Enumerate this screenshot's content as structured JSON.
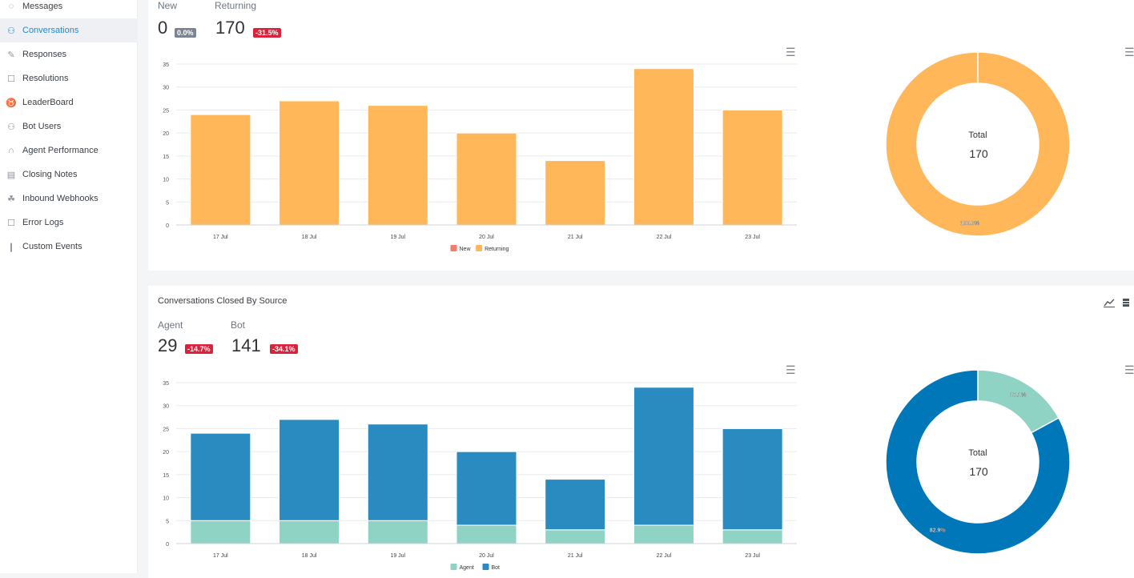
{
  "sidebar": {
    "items": [
      {
        "label": "Messages",
        "icon": "message-icon",
        "glyph": "◌",
        "active": false
      },
      {
        "label": "Conversations",
        "icon": "conversations-icon",
        "glyph": "⚇",
        "active": true
      },
      {
        "label": "Responses",
        "icon": "edit-icon",
        "glyph": "✎",
        "active": false
      },
      {
        "label": "Resolutions",
        "icon": "document-icon",
        "glyph": "☐",
        "active": false
      },
      {
        "label": "LeaderBoard",
        "icon": "trophy-icon",
        "glyph": "♉",
        "active": false
      },
      {
        "label": "Bot Users",
        "icon": "user-icon",
        "glyph": "⚇",
        "active": false
      },
      {
        "label": "Agent Performance",
        "icon": "headset-icon",
        "glyph": "∩",
        "active": false
      },
      {
        "label": "Closing Notes",
        "icon": "clipboard-icon",
        "glyph": "▤",
        "active": false
      },
      {
        "label": "Inbound Webhooks",
        "icon": "webhook-icon",
        "glyph": "☘",
        "active": false
      },
      {
        "label": "Error Logs",
        "icon": "error-log-icon",
        "glyph": "☐",
        "active": false
      },
      {
        "label": "Custom Events",
        "icon": "bar-chart-icon",
        "glyph": "❙",
        "active": false
      }
    ]
  },
  "card1": {
    "stats": [
      {
        "label": "New",
        "value": "0",
        "badge": "0.0%",
        "badge_color": "gray"
      },
      {
        "label": "Returning",
        "value": "170",
        "badge": "-31.5%",
        "badge_color": "red"
      }
    ]
  },
  "card2": {
    "title": "Conversations Closed By Source",
    "stats": [
      {
        "label": "Agent",
        "value": "29",
        "badge": "-14.7%",
        "badge_color": "red"
      },
      {
        "label": "Bot",
        "value": "141",
        "badge": "-34.1%",
        "badge_color": "red"
      }
    ]
  },
  "colors": {
    "new": "#f47c6c",
    "returning": "#ffb759",
    "agent": "#8fd3c4",
    "bot": "#0077b8",
    "bot_bar": "#2a8bc1"
  },
  "chart_data": [
    {
      "type": "bar",
      "stacked": true,
      "categories": [
        "17 Jul",
        "18 Jul",
        "19 Jul",
        "20 Jul",
        "21 Jul",
        "22 Jul",
        "23 Jul"
      ],
      "series": [
        {
          "name": "New",
          "values": [
            0,
            0,
            0,
            0,
            0,
            0,
            0
          ]
        },
        {
          "name": "Returning",
          "values": [
            24,
            27,
            26,
            20,
            14,
            34,
            25
          ]
        }
      ],
      "ylim": [
        0,
        35
      ],
      "yticks": [
        0,
        5,
        10,
        15,
        20,
        25,
        30,
        35
      ],
      "legend": "bottom"
    },
    {
      "type": "pie",
      "donut": true,
      "center_label": "Total",
      "center_value": "170",
      "slices": [
        {
          "name": "New",
          "value": 0,
          "label": ""
        },
        {
          "name": "Returning",
          "value": 170,
          "label": "100.0%"
        }
      ]
    },
    {
      "type": "bar",
      "stacked": true,
      "categories": [
        "17 Jul",
        "18 Jul",
        "19 Jul",
        "20 Jul",
        "21 Jul",
        "22 Jul",
        "23 Jul"
      ],
      "series": [
        {
          "name": "Agent",
          "values": [
            5,
            5,
            5,
            4,
            3,
            4,
            3
          ]
        },
        {
          "name": "Bot",
          "values": [
            19,
            22,
            21,
            16,
            11,
            30,
            22
          ]
        }
      ],
      "ylim": [
        0,
        35
      ],
      "yticks": [
        0,
        5,
        10,
        15,
        20,
        25,
        30,
        35
      ],
      "legend": "bottom"
    },
    {
      "type": "pie",
      "donut": true,
      "center_label": "Total",
      "center_value": "170",
      "slices": [
        {
          "name": "Agent",
          "value": 29,
          "label": "17.1%"
        },
        {
          "name": "Bot",
          "value": 141,
          "label": "82.9%"
        }
      ]
    }
  ]
}
